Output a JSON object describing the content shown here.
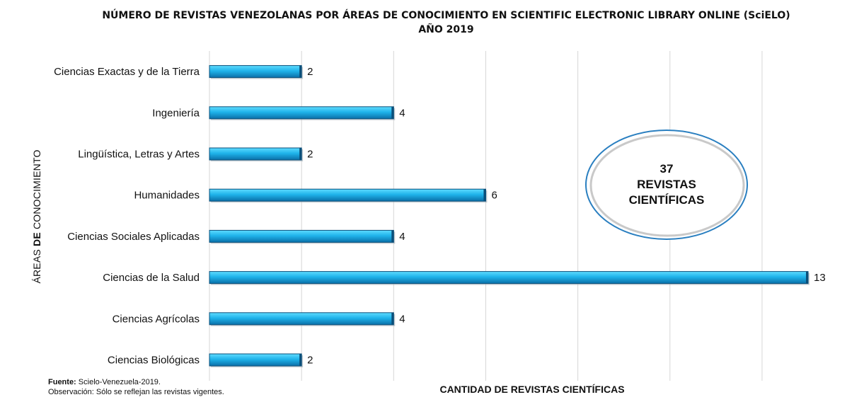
{
  "title_line1": "NÚMERO DE REVISTAS VENEZOLANAS POR ÁREAS DE CONOCIMIENTO EN SCIENTIFIC ELECTRONIC LIBRARY ONLINE (SciELO)",
  "title_line2": "AÑO 2019",
  "ylabel_prefix": "ÁREAS ",
  "ylabel_bold": "DE",
  "ylabel_suffix": " CONOCIMIENTO",
  "xlabel": "CANTIDAD DE REVISTAS CIENTÍFICAS",
  "callout": {
    "line1": "37",
    "line2": "REVISTAS",
    "line3": "CIENTÍFICAS"
  },
  "footer": {
    "source_label": "Fuente:",
    "source_text": " Scielo-Venezuela-2019.",
    "note": "Observación: Sólo se reflejan las revistas vigentes."
  },
  "colors": {
    "bar_top": "#5fdcff",
    "bar_mid": "#1fb3ea",
    "bar_bottom": "#0a6fa8",
    "bar_edge": "#0a4f7a",
    "grid": "#d6d6d6",
    "ellipse_outer": "#2a7fc0",
    "ellipse_inner": "#c9c9c9"
  },
  "chart_data": {
    "type": "bar",
    "orientation": "horizontal",
    "categories": [
      "Ciencias Exactas y de la Tierra",
      "Ingeniería",
      "Lingüística, Letras y Artes",
      "Humanidades",
      "Ciencias Sociales Aplicadas",
      "Ciencias de la Salud",
      "Ciencias Agrícolas",
      "Ciencias Biológicas"
    ],
    "values": [
      2,
      4,
      2,
      6,
      4,
      13,
      4,
      2
    ],
    "xlim": [
      0,
      14
    ],
    "x_gridlines": [
      0,
      2,
      4,
      6,
      8,
      10,
      12,
      14
    ],
    "data_labels": true,
    "grid": true
  }
}
